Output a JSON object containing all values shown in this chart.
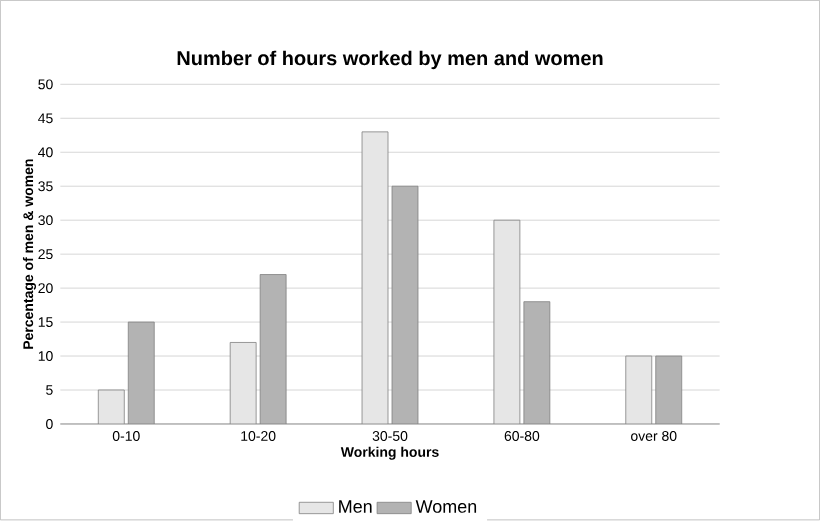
{
  "chart_data": {
    "type": "bar",
    "title": "Number of hours worked by men and women",
    "xlabel": "Working hours",
    "ylabel": "Percentage of men & women",
    "categories": [
      "0-10",
      "10-20",
      "30-50",
      "60-80",
      "over 80"
    ],
    "series": [
      {
        "name": "Men",
        "color": "#e6e6e6",
        "values": [
          5,
          12,
          43,
          30,
          10
        ]
      },
      {
        "name": "Women",
        "color": "#b3b3b3",
        "values": [
          15,
          22,
          35,
          18,
          10
        ]
      }
    ],
    "ylim": [
      0,
      50
    ],
    "yticks": [
      0,
      5,
      10,
      15,
      20,
      25,
      30,
      35,
      40,
      45,
      50
    ],
    "grid": "y",
    "legend": "bottom"
  }
}
